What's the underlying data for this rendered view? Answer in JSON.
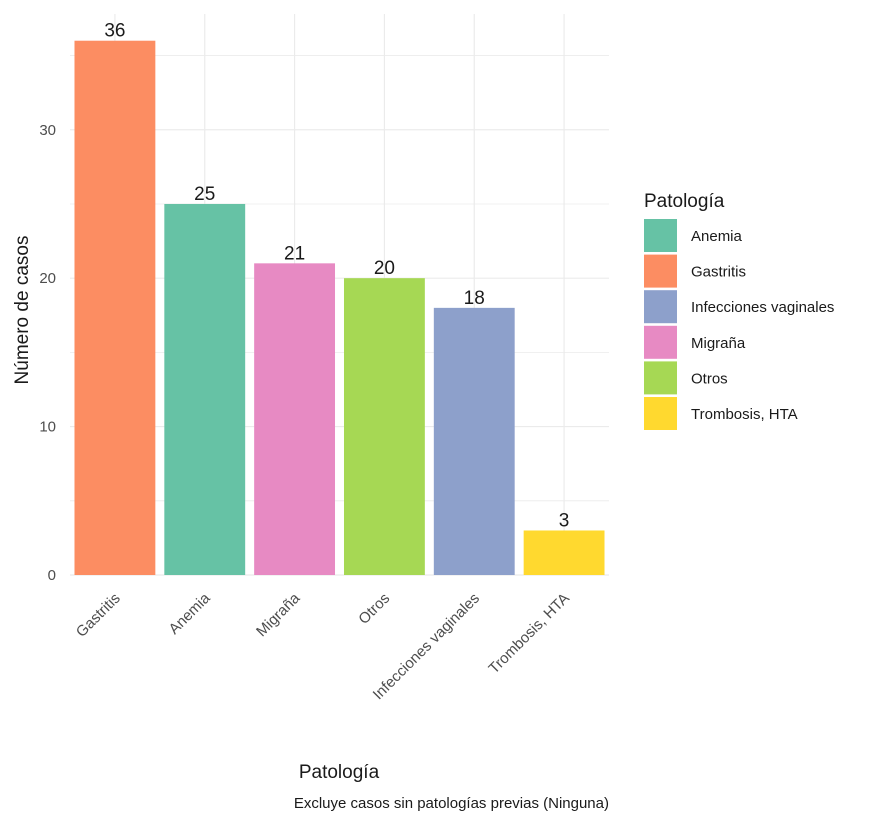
{
  "chart_data": {
    "type": "bar",
    "categories": [
      "Gastritis",
      "Anemia",
      "Migraña",
      "Otros",
      "Infecciones vaginales",
      "Trombosis, HTA"
    ],
    "values": [
      36,
      25,
      21,
      20,
      18,
      3
    ],
    "bar_colors": [
      "#FC8D62",
      "#66C2A5",
      "#E78AC3",
      "#A6D854",
      "#8DA0CB",
      "#FFD92F"
    ],
    "title": "",
    "xlabel": "Patología",
    "ylabel": "Número de casos",
    "ylim": [
      0,
      37.8
    ],
    "yticks": [
      0,
      10,
      20,
      30
    ],
    "grid": true,
    "caption": "Excluye casos sin patologías previas (Ninguna)",
    "legend": {
      "title": "Patología",
      "position": "right",
      "items": [
        {
          "label": "Anemia",
          "color": "#66C2A5"
        },
        {
          "label": "Gastritis",
          "color": "#FC8D62"
        },
        {
          "label": "Infecciones vaginales",
          "color": "#8DA0CB"
        },
        {
          "label": "Migraña",
          "color": "#E78AC3"
        },
        {
          "label": "Otros",
          "color": "#A6D854"
        },
        {
          "label": "Trombosis, HTA",
          "color": "#FFD92F"
        }
      ]
    }
  }
}
